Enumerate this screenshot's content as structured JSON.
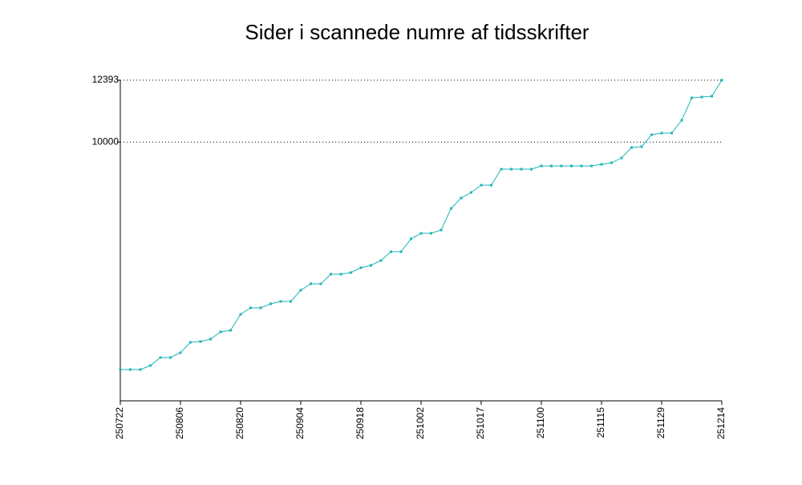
{
  "chart_data": {
    "type": "line",
    "title": "Sider i scannede numre af tidsskrifter",
    "categories": [
      "250722",
      null,
      null,
      null,
      null,
      null,
      "250806",
      null,
      null,
      null,
      null,
      null,
      "250820",
      null,
      null,
      null,
      null,
      null,
      "250904",
      null,
      null,
      null,
      null,
      null,
      "250918",
      null,
      null,
      null,
      null,
      null,
      "251002",
      null,
      null,
      null,
      null,
      null,
      "251017",
      null,
      null,
      null,
      null,
      null,
      "251100",
      null,
      null,
      null,
      null,
      null,
      "251115",
      null,
      null,
      null,
      null,
      null,
      "251129",
      null,
      null,
      null,
      null,
      null,
      "251214"
    ],
    "series": [
      {
        "name": "Sider",
        "color": "#1fb5b5",
        "values": [
          1208,
          1208,
          1208,
          1363,
          1673,
          1673,
          1859,
          2262,
          2293,
          2385,
          2664,
          2726,
          3346,
          3594,
          3594,
          3749,
          3842,
          3842,
          4275,
          4523,
          4523,
          4895,
          4895,
          4957,
          5143,
          5236,
          5422,
          5762,
          5762,
          6258,
          6475,
          6475,
          6599,
          7435,
          7838,
          8055,
          8334,
          8334,
          8953,
          8953,
          8953,
          8953,
          9077,
          9077,
          9077,
          9077,
          9077,
          9077,
          9139,
          9201,
          9387,
          9790,
          9821,
          10285,
          10347,
          10347,
          10843,
          11710,
          11741,
          11772,
          12393
        ]
      }
    ],
    "ylim": [
      0,
      12393
    ],
    "yticks": [
      10000,
      12393
    ],
    "grid": true
  }
}
